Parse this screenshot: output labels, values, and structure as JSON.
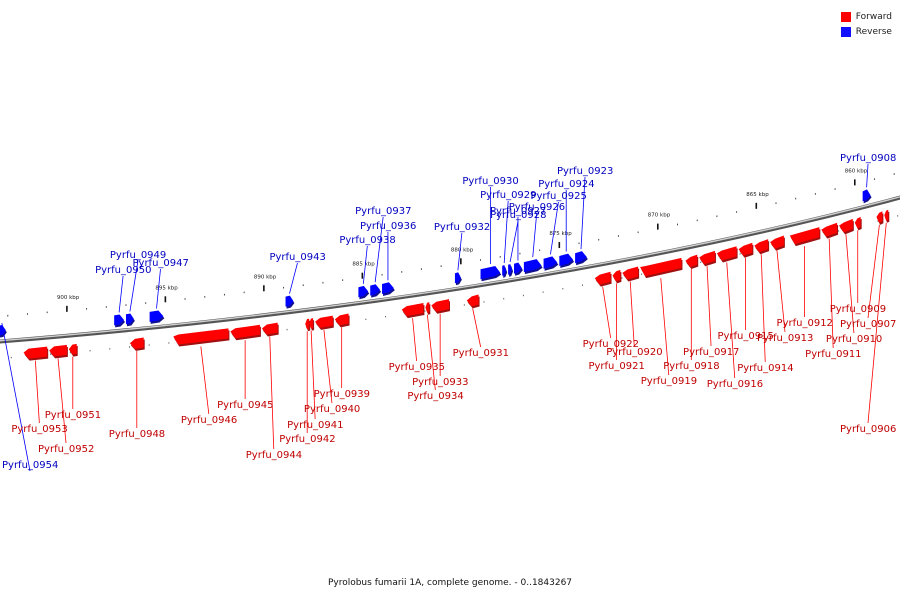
{
  "colors": {
    "forward": "#ff0000",
    "reverse": "#0000ff",
    "forward_shadow": "#a01010",
    "reverse_shadow": "#101090",
    "backbone": "#8c8c8c"
  },
  "legend": [
    {
      "label": "Forward",
      "color": "#ff0000"
    },
    {
      "label": "Reverse",
      "color": "#1010ff"
    }
  ],
  "caption": "Pyrolobus fumarii 1A, complete genome. - 0..1843267",
  "map": {
    "sequence_start": 0,
    "sequence_end": 1843267,
    "window_kbp": [
      903.7,
      857.4
    ],
    "ruler_labels": [
      "900 kbp",
      "895 kbp",
      "890 kbp",
      "885 kbp",
      "880 kbp",
      "875 kbp",
      "870 kbp",
      "865 kbp",
      "860 kbp"
    ],
    "ruler_kbp": [
      900,
      895,
      890,
      885,
      880,
      875,
      870,
      865,
      860
    ]
  },
  "genes": [
    {
      "id": "Pyrfu_0954",
      "strand": "reverse",
      "start_kbp": 903.5,
      "end_kbp": 903.1
    },
    {
      "id": "Pyrfu_0953",
      "strand": "forward",
      "start_kbp": 902.2,
      "end_kbp": 901.0
    },
    {
      "id": "Pyrfu_0952",
      "strand": "forward",
      "start_kbp": 900.9,
      "end_kbp": 900.0
    },
    {
      "id": "Pyrfu_0951",
      "strand": "forward",
      "start_kbp": 899.9,
      "end_kbp": 899.5
    },
    {
      "id": "Pyrfu_0950",
      "strand": "reverse",
      "start_kbp": 897.6,
      "end_kbp": 897.1
    },
    {
      "id": "Pyrfu_0949",
      "strand": "reverse",
      "start_kbp": 897.0,
      "end_kbp": 896.6
    },
    {
      "id": "Pyrfu_0948",
      "strand": "forward",
      "start_kbp": 896.8,
      "end_kbp": 896.1
    },
    {
      "id": "Pyrfu_0947",
      "strand": "reverse",
      "start_kbp": 895.8,
      "end_kbp": 895.1
    },
    {
      "id": "Pyrfu_0946",
      "strand": "forward",
      "start_kbp": 894.6,
      "end_kbp": 891.8
    },
    {
      "id": "Pyrfu_0945",
      "strand": "forward",
      "start_kbp": 891.7,
      "end_kbp": 890.2
    },
    {
      "id": "Pyrfu_0944",
      "strand": "forward",
      "start_kbp": 890.1,
      "end_kbp": 889.3
    },
    {
      "id": "Pyrfu_0943",
      "strand": "reverse",
      "start_kbp": 888.9,
      "end_kbp": 888.5
    },
    {
      "id": "Pyrfu_0942",
      "strand": "forward",
      "start_kbp": 887.9,
      "end_kbp": 887.7
    },
    {
      "id": "Pyrfu_0941",
      "strand": "forward",
      "start_kbp": 887.7,
      "end_kbp": 887.5
    },
    {
      "id": "Pyrfu_0940",
      "strand": "forward",
      "start_kbp": 887.4,
      "end_kbp": 886.5
    },
    {
      "id": "Pyrfu_0939",
      "strand": "forward",
      "start_kbp": 886.4,
      "end_kbp": 885.7
    },
    {
      "id": "Pyrfu_0938",
      "strand": "reverse",
      "start_kbp": 885.2,
      "end_kbp": 884.7
    },
    {
      "id": "Pyrfu_0937",
      "strand": "reverse",
      "start_kbp": 884.6,
      "end_kbp": 884.1
    },
    {
      "id": "Pyrfu_0936",
      "strand": "reverse",
      "start_kbp": 884.0,
      "end_kbp": 883.4
    },
    {
      "id": "Pyrfu_0935",
      "strand": "forward",
      "start_kbp": 883.0,
      "end_kbp": 881.9
    },
    {
      "id": "Pyrfu_0934",
      "strand": "forward",
      "start_kbp": 881.8,
      "end_kbp": 881.6
    },
    {
      "id": "Pyrfu_0933",
      "strand": "forward",
      "start_kbp": 881.5,
      "end_kbp": 880.6
    },
    {
      "id": "Pyrfu_0932",
      "strand": "reverse",
      "start_kbp": 880.3,
      "end_kbp": 880.0
    },
    {
      "id": "Pyrfu_0931",
      "strand": "forward",
      "start_kbp": 879.7,
      "end_kbp": 879.1
    },
    {
      "id": "Pyrfu_0930",
      "strand": "reverse",
      "start_kbp": 879.0,
      "end_kbp": 878.0
    },
    {
      "id": "Pyrfu_0929",
      "strand": "reverse",
      "start_kbp": 877.9,
      "end_kbp": 877.7
    },
    {
      "id": "Pyrfu_0928",
      "strand": "reverse",
      "start_kbp": 877.6,
      "end_kbp": 877.4
    },
    {
      "id": "Pyrfu_0927",
      "strand": "reverse",
      "start_kbp": 877.3,
      "end_kbp": 876.9
    },
    {
      "id": "Pyrfu_0926",
      "strand": "reverse",
      "start_kbp": 876.8,
      "end_kbp": 875.9
    },
    {
      "id": "Pyrfu_0925",
      "strand": "reverse",
      "start_kbp": 875.8,
      "end_kbp": 875.1
    },
    {
      "id": "Pyrfu_0924",
      "strand": "reverse",
      "start_kbp": 875.0,
      "end_kbp": 874.3
    },
    {
      "id": "Pyrfu_0923",
      "strand": "reverse",
      "start_kbp": 874.2,
      "end_kbp": 873.6
    },
    {
      "id": "Pyrfu_0922",
      "strand": "forward",
      "start_kbp": 873.2,
      "end_kbp": 872.4
    },
    {
      "id": "Pyrfu_0921",
      "strand": "forward",
      "start_kbp": 872.3,
      "end_kbp": 871.9
    },
    {
      "id": "Pyrfu_0920",
      "strand": "forward",
      "start_kbp": 871.8,
      "end_kbp": 871.0
    },
    {
      "id": "Pyrfu_0919",
      "strand": "forward",
      "start_kbp": 870.9,
      "end_kbp": 868.8
    },
    {
      "id": "Pyrfu_0918",
      "strand": "forward",
      "start_kbp": 868.6,
      "end_kbp": 868.0
    },
    {
      "id": "Pyrfu_0917",
      "strand": "forward",
      "start_kbp": 867.9,
      "end_kbp": 867.1
    },
    {
      "id": "Pyrfu_0916",
      "strand": "forward",
      "start_kbp": 867.0,
      "end_kbp": 866.0
    },
    {
      "id": "Pyrfu_0915",
      "strand": "forward",
      "start_kbp": 865.9,
      "end_kbp": 865.2
    },
    {
      "id": "Pyrfu_0914",
      "strand": "forward",
      "start_kbp": 865.1,
      "end_kbp": 864.4
    },
    {
      "id": "Pyrfu_0913",
      "strand": "forward",
      "start_kbp": 864.3,
      "end_kbp": 863.6
    },
    {
      "id": "Pyrfu_0912",
      "strand": "forward",
      "start_kbp": 863.3,
      "end_kbp": 861.8
    },
    {
      "id": "Pyrfu_0911",
      "strand": "forward",
      "start_kbp": 861.7,
      "end_kbp": 860.9
    },
    {
      "id": "Pyrfu_0910",
      "strand": "forward",
      "start_kbp": 860.8,
      "end_kbp": 860.1
    },
    {
      "id": "Pyrfu_0909",
      "strand": "forward",
      "start_kbp": 860.0,
      "end_kbp": 859.7
    },
    {
      "id": "Pyrfu_0908",
      "strand": "reverse",
      "start_kbp": 859.6,
      "end_kbp": 859.2
    },
    {
      "id": "Pyrfu_0907",
      "strand": "forward",
      "start_kbp": 858.9,
      "end_kbp": 858.6
    },
    {
      "id": "Pyrfu_0906",
      "strand": "forward",
      "start_kbp": 858.5,
      "end_kbp": 858.3
    }
  ]
}
